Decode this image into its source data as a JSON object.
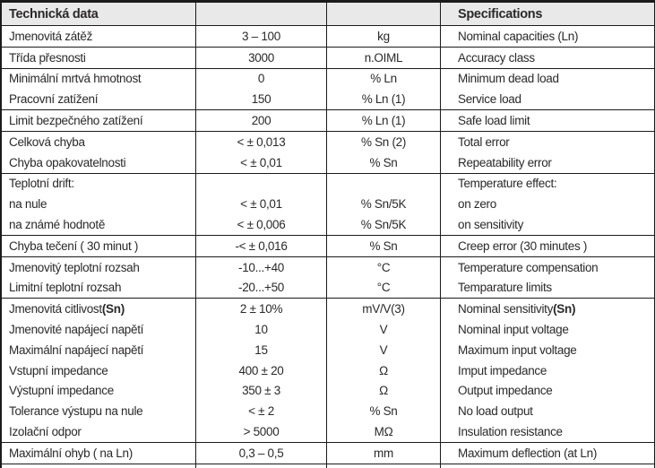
{
  "header": {
    "left": "Technická data",
    "right": "Specifications"
  },
  "colors": {
    "header_bg": "#e9e9e9",
    "border": "#1c1b1b",
    "text": "#2b282a"
  },
  "table": {
    "columns": [
      "czech_label",
      "value",
      "unit",
      "english_label"
    ],
    "groups": [
      {
        "rows": [
          {
            "cz": "Jmenovitá zátěž",
            "value": "3 – 100",
            "unit": "kg",
            "en": "Nominal capacities (Ln)"
          }
        ]
      },
      {
        "rows": [
          {
            "cz": "Třída přesnosti",
            "value": "3000",
            "unit": "n.OIML",
            "en": "Accuracy class"
          }
        ]
      },
      {
        "rows": [
          {
            "cz": "Minimální mrtvá hmotnost",
            "value": "0",
            "unit": "% Ln",
            "en": "Minimum dead load"
          },
          {
            "cz": "Pracovní zatížení",
            "value": "150",
            "unit": "% Ln (1)",
            "en": "Service load"
          }
        ]
      },
      {
        "rows": [
          {
            "cz": "Limit bezpečného zatížení",
            "value": "200",
            "unit": "% Ln (1)",
            "en": "Safe load limit"
          }
        ]
      },
      {
        "rows": [
          {
            "cz": "Celková chyba",
            "value": "< ± 0,013",
            "unit": "% Sn (2)",
            "en": "Total error"
          },
          {
            "cz": "Chyba opakovatelnosti",
            "value": "< ± 0,01",
            "unit": "% Sn",
            "en": "Repeatability error"
          }
        ]
      },
      {
        "rows": [
          {
            "cz": "Teplotní drift:",
            "value": "",
            "unit": "",
            "en": "Temperature effect:"
          },
          {
            "cz": "na nule",
            "value": "< ± 0,01",
            "unit": "% Sn/5K",
            "en": "on zero"
          },
          {
            "cz": "na známé hodnotě",
            "value": "< ± 0,006",
            "unit": "% Sn/5K",
            "en": "on sensitivity"
          }
        ]
      },
      {
        "rows": [
          {
            "cz": "Chyba tečení ( 30 minut )",
            "value": "-< ± 0,016",
            "unit": "% Sn",
            "en": "Creep error (30 minutes )"
          }
        ]
      },
      {
        "rows": [
          {
            "cz": "Jmenovitý teplotní rozsah",
            "value": "-10...+40",
            "unit": "°C",
            "en": "Temperature compensation"
          },
          {
            "cz": "Limitní teplotní rozsah",
            "value": "-20...+50",
            "unit": "°C",
            "en": "Temparature limits"
          }
        ]
      },
      {
        "rows": [
          {
            "cz": "Jmenovitá citlivost ",
            "cz_bold": "(Sn)",
            "value": "2 ± 10%",
            "unit": "mV/V(3)",
            "en": "Nominal sensitivity ",
            "en_bold": "(Sn)"
          },
          {
            "cz": "Jmenovité napájecí napětí",
            "value": "10",
            "unit": "V",
            "en": "Nominal input voltage"
          },
          {
            "cz": "Maximální napájecí napětí",
            "value": "15",
            "unit": "V",
            "en": "Maximum input voltage"
          },
          {
            "cz": "Vstupní impedance",
            "value": "400 ± 20",
            "unit": "Ω",
            "en": "Imput impedance"
          },
          {
            "cz": "Výstupní impedance",
            "value": "350 ± 3",
            "unit": "Ω",
            "en": "Output impedance"
          },
          {
            "cz": "Tolerance výstupu na nule",
            "value": "< ± 2",
            "unit": "% Sn",
            "en": "No load output"
          },
          {
            "cz": "Izolační odpor",
            "value": "> 5000",
            "unit": "MΩ",
            "en": "Insulation resistance"
          }
        ]
      },
      {
        "rows": [
          {
            "cz": "Maximální ohyb ( na Ln)",
            "value": "0,3 – 0,5",
            "unit": "mm",
            "en": "Maximum deflection (at Ln)"
          }
        ]
      }
    ]
  }
}
